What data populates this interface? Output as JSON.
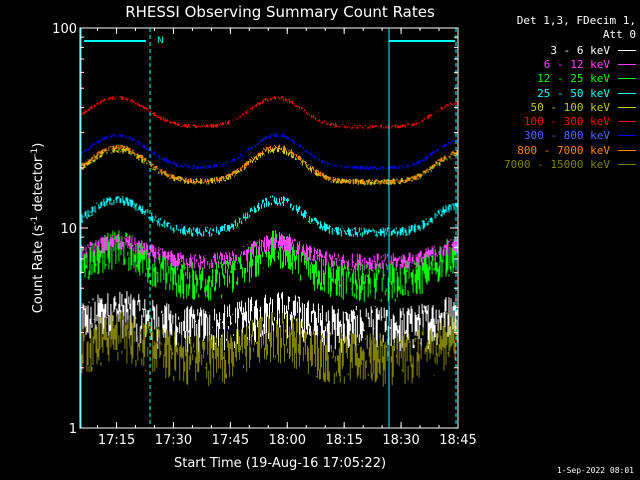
{
  "chart_data": {
    "type": "line",
    "title": "RHESSI Observing Summary Count Rates",
    "xlabel": "Start Time (19-Aug-16 17:05:22)",
    "ylabel_main": "Count Rate (s",
    "ylabel_sup": "-1",
    "ylabel_tail": " detector",
    "ylabel_sup2": "-1",
    "ylabel_close": ")",
    "y_scale": "log",
    "ylim": [
      1,
      100
    ],
    "x_range": [
      "17:05:22",
      "18:45:00"
    ],
    "x_ticks": [
      "17:15",
      "17:30",
      "17:45",
      "18:00",
      "18:15",
      "18:30",
      "18:45"
    ],
    "y_ticks": [
      "1",
      "10",
      "100"
    ],
    "night_marker": "N",
    "series": [
      {
        "name": "3 - 6 keV",
        "color": "#ffffff",
        "level": 3.2,
        "amp": 0.2,
        "noise": 0.55
      },
      {
        "name": "6 - 12 keV",
        "color": "#ff40ff",
        "level": 6.8,
        "amp": 0.25,
        "noise": 0.2
      },
      {
        "name": "12 - 25 keV",
        "color": "#00ff00",
        "level": 5.5,
        "amp": 0.45,
        "noise": 0.45
      },
      {
        "name": "25 - 50 keV",
        "color": "#00ffff",
        "level": 9.5,
        "amp": 0.45,
        "noise": 0.12
      },
      {
        "name": "50 - 100 keV",
        "color": "#cccc00",
        "level": 17,
        "amp": 0.45,
        "noise": 0.08
      },
      {
        "name": "100 - 300 keV",
        "color": "#ff0000",
        "level": 32,
        "amp": 0.4,
        "noise": 0.05
      },
      {
        "name": "300 - 800 keV",
        "color": "#0000ff",
        "level": 20,
        "amp": 0.45,
        "noise": 0.05
      },
      {
        "name": "800 - 7000 keV",
        "color": "#ff8800",
        "level": 17,
        "amp": 0.5,
        "noise": 0.06
      },
      {
        "name": "7000 - 15000 keV",
        "color": "#808000",
        "level": 2.3,
        "amp": 0.3,
        "noise": 0.6
      }
    ]
  },
  "legend": {
    "header_line1": "Det 1,3, FDecim 1,",
    "header_line2": "Att 0"
  },
  "footer": {
    "timestamp": "1-Sep-2022 08:01"
  }
}
